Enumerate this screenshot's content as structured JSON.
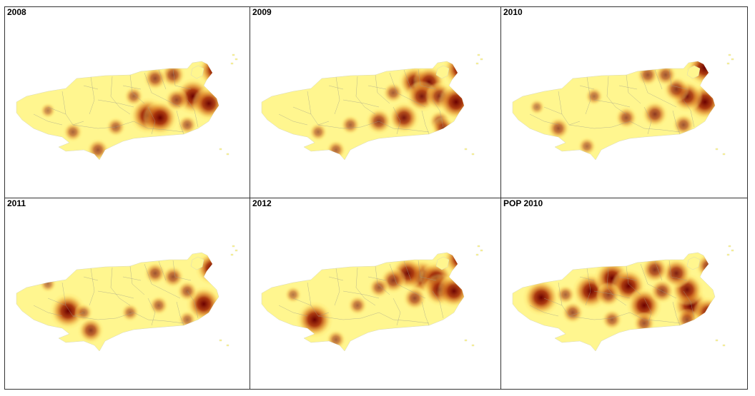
{
  "panels": [
    {
      "id": "p2008",
      "title": "2008",
      "hotspots": [
        {
          "cx": 200,
          "cy": 152,
          "i": 1.0
        },
        {
          "cx": 217,
          "cy": 155,
          "i": 0.95
        },
        {
          "cx": 263,
          "cy": 125,
          "i": 1.0
        },
        {
          "cx": 285,
          "cy": 135,
          "i": 0.9
        },
        {
          "cx": 295,
          "cy": 88,
          "i": 1.0
        },
        {
          "cx": 235,
          "cy": 95,
          "i": 0.55
        },
        {
          "cx": 210,
          "cy": 100,
          "i": 0.5
        },
        {
          "cx": 240,
          "cy": 130,
          "i": 0.5
        },
        {
          "cx": 180,
          "cy": 125,
          "i": 0.35
        },
        {
          "cx": 130,
          "cy": 200,
          "i": 0.45
        },
        {
          "cx": 95,
          "cy": 175,
          "i": 0.35
        },
        {
          "cx": 60,
          "cy": 145,
          "i": 0.2
        },
        {
          "cx": 155,
          "cy": 168,
          "i": 0.35
        },
        {
          "cx": 255,
          "cy": 165,
          "i": 0.35
        }
      ]
    },
    {
      "id": "p2009",
      "title": "2009",
      "hotspots": [
        {
          "cx": 230,
          "cy": 105,
          "i": 0.85
        },
        {
          "cx": 250,
          "cy": 105,
          "i": 0.85
        },
        {
          "cx": 240,
          "cy": 125,
          "i": 0.8
        },
        {
          "cx": 265,
          "cy": 125,
          "i": 0.7
        },
        {
          "cx": 288,
          "cy": 133,
          "i": 1.0
        },
        {
          "cx": 295,
          "cy": 87,
          "i": 1.0
        },
        {
          "cx": 215,
          "cy": 155,
          "i": 0.8
        },
        {
          "cx": 180,
          "cy": 160,
          "i": 0.6
        },
        {
          "cx": 265,
          "cy": 160,
          "i": 0.45
        },
        {
          "cx": 140,
          "cy": 165,
          "i": 0.35
        },
        {
          "cx": 120,
          "cy": 200,
          "i": 0.35
        },
        {
          "cx": 95,
          "cy": 175,
          "i": 0.3
        },
        {
          "cx": 200,
          "cy": 120,
          "i": 0.4
        },
        {
          "cx": 270,
          "cy": 170,
          "i": 0.5
        }
      ]
    },
    {
      "id": "p2010",
      "title": "2010",
      "hotspots": [
        {
          "cx": 285,
          "cy": 85,
          "i": 1.0
        },
        {
          "cx": 285,
          "cy": 133,
          "i": 1.0
        },
        {
          "cx": 260,
          "cy": 125,
          "i": 0.8
        },
        {
          "cx": 245,
          "cy": 115,
          "i": 0.6
        },
        {
          "cx": 215,
          "cy": 150,
          "i": 0.6
        },
        {
          "cx": 205,
          "cy": 95,
          "i": 0.45
        },
        {
          "cx": 230,
          "cy": 95,
          "i": 0.45
        },
        {
          "cx": 175,
          "cy": 155,
          "i": 0.45
        },
        {
          "cx": 255,
          "cy": 165,
          "i": 0.45
        },
        {
          "cx": 80,
          "cy": 170,
          "i": 0.45
        },
        {
          "cx": 120,
          "cy": 195,
          "i": 0.3
        },
        {
          "cx": 50,
          "cy": 140,
          "i": 0.2
        },
        {
          "cx": 130,
          "cy": 125,
          "i": 0.3
        }
      ]
    },
    {
      "id": "p2011",
      "title": "2011",
      "hotspots": [
        {
          "cx": 88,
          "cy": 158,
          "i": 1.0
        },
        {
          "cx": 278,
          "cy": 148,
          "i": 0.95
        },
        {
          "cx": 290,
          "cy": 98,
          "i": 0.9
        },
        {
          "cx": 120,
          "cy": 185,
          "i": 0.6
        },
        {
          "cx": 210,
          "cy": 105,
          "i": 0.45
        },
        {
          "cx": 235,
          "cy": 110,
          "i": 0.45
        },
        {
          "cx": 255,
          "cy": 130,
          "i": 0.4
        },
        {
          "cx": 215,
          "cy": 150,
          "i": 0.35
        },
        {
          "cx": 175,
          "cy": 160,
          "i": 0.3
        },
        {
          "cx": 60,
          "cy": 120,
          "i": 0.25
        },
        {
          "cx": 110,
          "cy": 160,
          "i": 0.3
        },
        {
          "cx": 255,
          "cy": 170,
          "i": 0.3
        }
      ]
    },
    {
      "id": "p2012",
      "title": "2012",
      "hotspots": [
        {
          "cx": 240,
          "cy": 110,
          "i": 0.95
        },
        {
          "cx": 260,
          "cy": 112,
          "i": 0.9
        },
        {
          "cx": 220,
          "cy": 105,
          "i": 0.85
        },
        {
          "cx": 265,
          "cy": 128,
          "i": 0.85
        },
        {
          "cx": 285,
          "cy": 130,
          "i": 0.9
        },
        {
          "cx": 295,
          "cy": 85,
          "i": 1.0
        },
        {
          "cx": 90,
          "cy": 170,
          "i": 1.0
        },
        {
          "cx": 200,
          "cy": 115,
          "i": 0.6
        },
        {
          "cx": 230,
          "cy": 140,
          "i": 0.5
        },
        {
          "cx": 180,
          "cy": 125,
          "i": 0.4
        },
        {
          "cx": 120,
          "cy": 198,
          "i": 0.35
        },
        {
          "cx": 60,
          "cy": 135,
          "i": 0.25
        },
        {
          "cx": 150,
          "cy": 150,
          "i": 0.35
        }
      ]
    },
    {
      "id": "ppop2010",
      "title": "POP 2010",
      "hotspots": [
        {
          "cx": 56,
          "cy": 139,
          "i": 1.0
        },
        {
          "cx": 125,
          "cy": 130,
          "i": 1.0
        },
        {
          "cx": 155,
          "cy": 112,
          "i": 1.0
        },
        {
          "cx": 178,
          "cy": 123,
          "i": 0.95
        },
        {
          "cx": 200,
          "cy": 150,
          "i": 0.95
        },
        {
          "cx": 265,
          "cy": 150,
          "i": 0.95
        },
        {
          "cx": 260,
          "cy": 128,
          "i": 0.85
        },
        {
          "cx": 245,
          "cy": 105,
          "i": 0.75
        },
        {
          "cx": 215,
          "cy": 100,
          "i": 0.65
        },
        {
          "cx": 225,
          "cy": 130,
          "i": 0.55
        },
        {
          "cx": 290,
          "cy": 160,
          "i": 0.8
        },
        {
          "cx": 100,
          "cy": 160,
          "i": 0.45
        },
        {
          "cx": 90,
          "cy": 135,
          "i": 0.35
        },
        {
          "cx": 150,
          "cy": 135,
          "i": 0.55
        },
        {
          "cx": 200,
          "cy": 175,
          "i": 0.45
        },
        {
          "cx": 155,
          "cy": 170,
          "i": 0.4
        },
        {
          "cx": 260,
          "cy": 170,
          "i": 0.45
        },
        {
          "cx": 290,
          "cy": 95,
          "i": 0.6
        }
      ]
    }
  ],
  "colors": {
    "land": "#fff68f",
    "border": "#9e9e8a",
    "ramp_low": "#ffe36a",
    "ramp_mid": "#e08a2a",
    "ramp_high": "#6b0000"
  }
}
